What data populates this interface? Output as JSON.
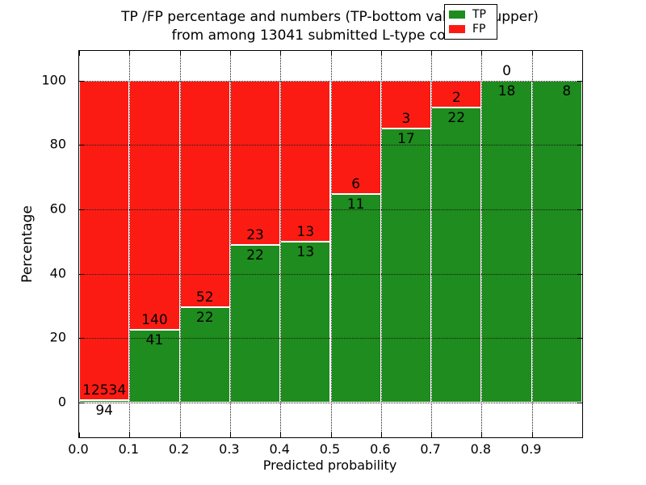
{
  "title": {
    "line1": "TP /FP percentage and numbers (TP-bottom value, FP-upper)",
    "line2": "from among 13041 submitted L-type contacts"
  },
  "axes": {
    "xlabel": "Predicted probability",
    "ylabel": "Percentage",
    "x_tick_labels": [
      "0.0",
      "0.1",
      "0.2",
      "0.3",
      "0.4",
      "0.5",
      "0.6",
      "0.7",
      "0.8",
      "0.9"
    ],
    "y_tick_labels": [
      "0",
      "20",
      "40",
      "60",
      "80",
      "100"
    ],
    "y_tick_values": [
      0,
      20,
      40,
      60,
      80,
      100
    ],
    "grid": true
  },
  "legend": {
    "position": "upper right",
    "entries": [
      {
        "label": "TP",
        "color": "#1e8c1e"
      },
      {
        "label": "FP",
        "color": "#fc1b13"
      }
    ]
  },
  "colors": {
    "tp": "#1e8c1e",
    "fp": "#fc1b13",
    "bar_edge": "#ffffff",
    "text": "#000000"
  },
  "chart_data": {
    "type": "bar",
    "stacked": true,
    "title": "TP /FP percentage and numbers (TP-bottom value, FP-upper) from among 13041 submitted L-type contacts",
    "xlabel": "Predicted probability",
    "ylabel": "Percentage",
    "bin_edges": [
      0.0,
      0.1,
      0.2,
      0.3,
      0.4,
      0.5,
      0.6,
      0.7,
      0.8,
      0.9,
      1.0
    ],
    "categories": [
      "0.0-0.1",
      "0.1-0.2",
      "0.2-0.3",
      "0.3-0.4",
      "0.4-0.5",
      "0.5-0.6",
      "0.6-0.7",
      "0.7-0.8",
      "0.8-0.9",
      "0.9-1.0"
    ],
    "series": [
      {
        "name": "TP",
        "values": [
          94,
          41,
          22,
          22,
          13,
          11,
          17,
          22,
          18,
          8
        ]
      },
      {
        "name": "FP",
        "values": [
          12534,
          140,
          52,
          23,
          13,
          6,
          3,
          2,
          0,
          null
        ]
      }
    ],
    "tp_percent": [
      0.744,
      22.652,
      29.73,
      48.889,
      50.0,
      64.706,
      85.0,
      91.667,
      100.0,
      100.0
    ],
    "tp_labels": [
      "94",
      "41",
      "22",
      "22",
      "13",
      "11",
      "17",
      "22",
      "18",
      "8"
    ],
    "fp_labels": [
      "12534",
      "140",
      "52",
      "23",
      "13",
      "6",
      "3",
      "2",
      "0",
      ""
    ],
    "ylim": [
      -10.8,
      109.2
    ],
    "xlim": [
      0.0,
      1.0
    ],
    "legend_position": "upper right"
  }
}
